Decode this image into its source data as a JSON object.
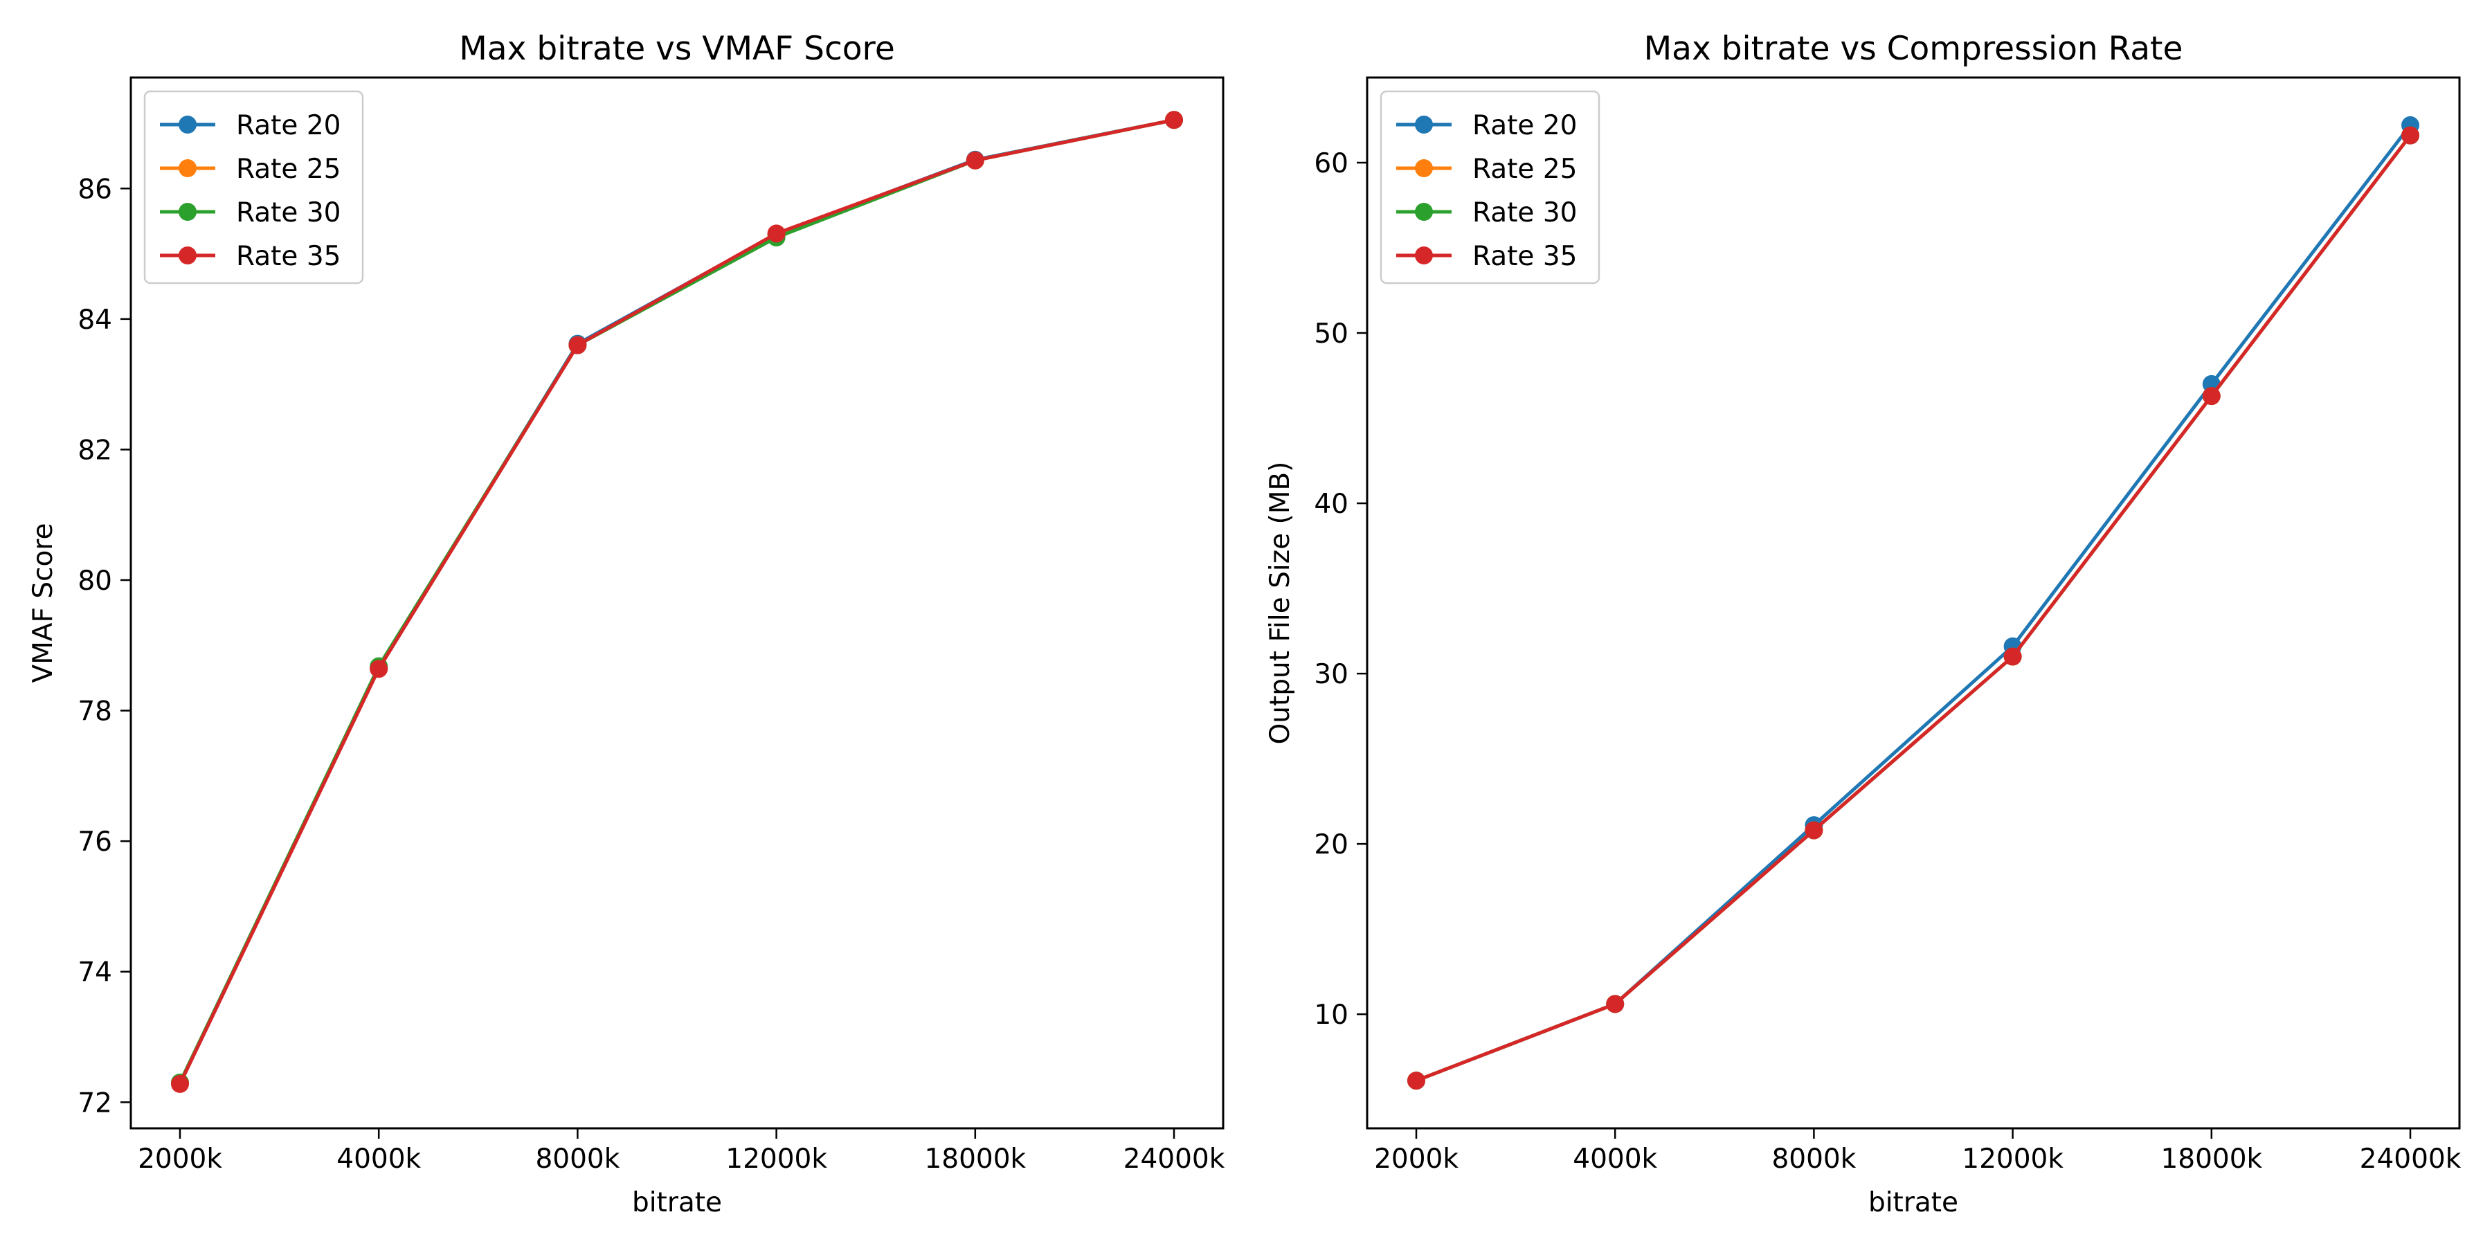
{
  "chart_data": [
    {
      "type": "line",
      "title": "Max bitrate vs VMAF Score",
      "xlabel": "bitrate",
      "ylabel": "VMAF Score",
      "categories": [
        "2000k",
        "4000k",
        "8000k",
        "12000k",
        "18000k",
        "24000k"
      ],
      "ylim": [
        71.6,
        87.7
      ],
      "yticks": [
        72,
        74,
        76,
        78,
        80,
        82,
        84,
        86
      ],
      "grid": false,
      "legend_position": "top-left",
      "series": [
        {
          "name": "Rate 20",
          "color": "#1f77b4",
          "marker": "circle",
          "values": [
            72.3,
            78.65,
            83.62,
            85.3,
            86.44,
            87.05
          ]
        },
        {
          "name": "Rate 25",
          "color": "#ff7f0e",
          "marker": "circle",
          "values": [
            72.3,
            78.65,
            83.6,
            85.28,
            86.43,
            87.05
          ]
        },
        {
          "name": "Rate 30",
          "color": "#2ca02c",
          "marker": "circle",
          "values": [
            72.3,
            78.68,
            83.6,
            85.25,
            86.43,
            87.05
          ]
        },
        {
          "name": "Rate 35",
          "color": "#d62728",
          "marker": "circle",
          "values": [
            72.28,
            78.64,
            83.6,
            85.31,
            86.43,
            87.05
          ]
        }
      ]
    },
    {
      "type": "line",
      "title": "Max bitrate vs Compression Rate",
      "xlabel": "bitrate",
      "ylabel": "Output File Size (MB)",
      "categories": [
        "2000k",
        "4000k",
        "8000k",
        "12000k",
        "18000k",
        "24000k"
      ],
      "ylim": [
        3.3,
        65.0
      ],
      "yticks": [
        10,
        20,
        30,
        40,
        50,
        60
      ],
      "grid": false,
      "legend_position": "top-left",
      "series": [
        {
          "name": "Rate 20",
          "color": "#1f77b4",
          "marker": "circle",
          "values": [
            6.1,
            10.6,
            21.1,
            31.6,
            47.0,
            62.2
          ]
        },
        {
          "name": "Rate 25",
          "color": "#ff7f0e",
          "marker": "circle",
          "values": [
            6.1,
            10.6,
            20.8,
            31.0,
            46.3,
            61.6
          ]
        },
        {
          "name": "Rate 30",
          "color": "#2ca02c",
          "marker": "circle",
          "values": [
            6.1,
            10.6,
            20.8,
            31.0,
            46.3,
            61.6
          ]
        },
        {
          "name": "Rate 35",
          "color": "#d62728",
          "marker": "circle",
          "values": [
            6.1,
            10.6,
            20.8,
            31.0,
            46.3,
            61.6
          ]
        }
      ]
    }
  ]
}
